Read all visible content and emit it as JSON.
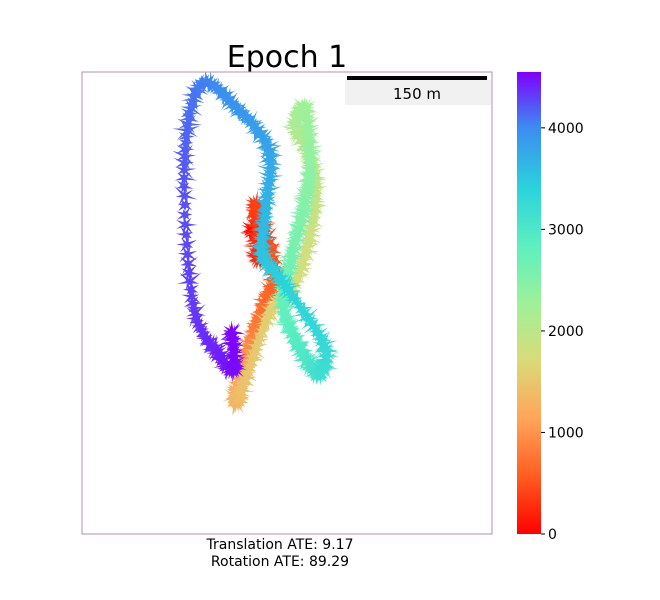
{
  "chart_data": {
    "type": "scatter",
    "title": "Epoch 1",
    "scale_bar": {
      "label": "150 m",
      "length_m": 150
    },
    "colorbar": {
      "colormap": "rainbow",
      "min": 0,
      "max": 4550,
      "ticks": [
        0,
        1000,
        2000,
        3000,
        4000
      ]
    },
    "metrics": {
      "translation": "Translation ATE: 9.17",
      "rotation": "Rotation ATE: 89.29"
    },
    "trajectory": {
      "x_range": [
        0,
        500
      ],
      "y_range": [
        0,
        560
      ],
      "waypoints": [
        {
          "t": 0,
          "x": 208,
          "y": 190
        },
        {
          "t": 120,
          "x": 218,
          "y": 205
        },
        {
          "t": 240,
          "x": 215,
          "y": 225
        },
        {
          "t": 360,
          "x": 212,
          "y": 160
        },
        {
          "t": 520,
          "x": 235,
          "y": 240
        },
        {
          "t": 680,
          "x": 220,
          "y": 285
        },
        {
          "t": 840,
          "x": 208,
          "y": 320
        },
        {
          "t": 1000,
          "x": 200,
          "y": 350
        },
        {
          "t": 1150,
          "x": 190,
          "y": 380
        },
        {
          "t": 1300,
          "x": 188,
          "y": 400
        },
        {
          "t": 1450,
          "x": 198,
          "y": 375
        },
        {
          "t": 1600,
          "x": 230,
          "y": 290
        },
        {
          "t": 1720,
          "x": 255,
          "y": 265
        },
        {
          "t": 1820,
          "x": 275,
          "y": 210
        },
        {
          "t": 1920,
          "x": 285,
          "y": 145
        },
        {
          "t": 2020,
          "x": 275,
          "y": 95
        },
        {
          "t": 2120,
          "x": 260,
          "y": 65
        },
        {
          "t": 2250,
          "x": 272,
          "y": 45
        },
        {
          "t": 2380,
          "x": 278,
          "y": 110
        },
        {
          "t": 2500,
          "x": 270,
          "y": 165
        },
        {
          "t": 2620,
          "x": 255,
          "y": 225
        },
        {
          "t": 2750,
          "x": 245,
          "y": 280
        },
        {
          "t": 2880,
          "x": 258,
          "y": 320
        },
        {
          "t": 3010,
          "x": 275,
          "y": 350
        },
        {
          "t": 3140,
          "x": 290,
          "y": 365
        },
        {
          "t": 3270,
          "x": 295,
          "y": 330
        },
        {
          "t": 3400,
          "x": 245,
          "y": 255
        },
        {
          "t": 3530,
          "x": 220,
          "y": 220
        },
        {
          "t": 3660,
          "x": 225,
          "y": 160
        },
        {
          "t": 3790,
          "x": 228,
          "y": 95
        },
        {
          "t": 3920,
          "x": 190,
          "y": 45
        },
        {
          "t": 4050,
          "x": 145,
          "y": 15
        },
        {
          "t": 4200,
          "x": 125,
          "y": 110
        },
        {
          "t": 4320,
          "x": 135,
          "y": 280
        },
        {
          "t": 4420,
          "x": 165,
          "y": 340
        },
        {
          "t": 4500,
          "x": 185,
          "y": 360
        },
        {
          "t": 4550,
          "x": 183,
          "y": 315
        }
      ]
    }
  }
}
